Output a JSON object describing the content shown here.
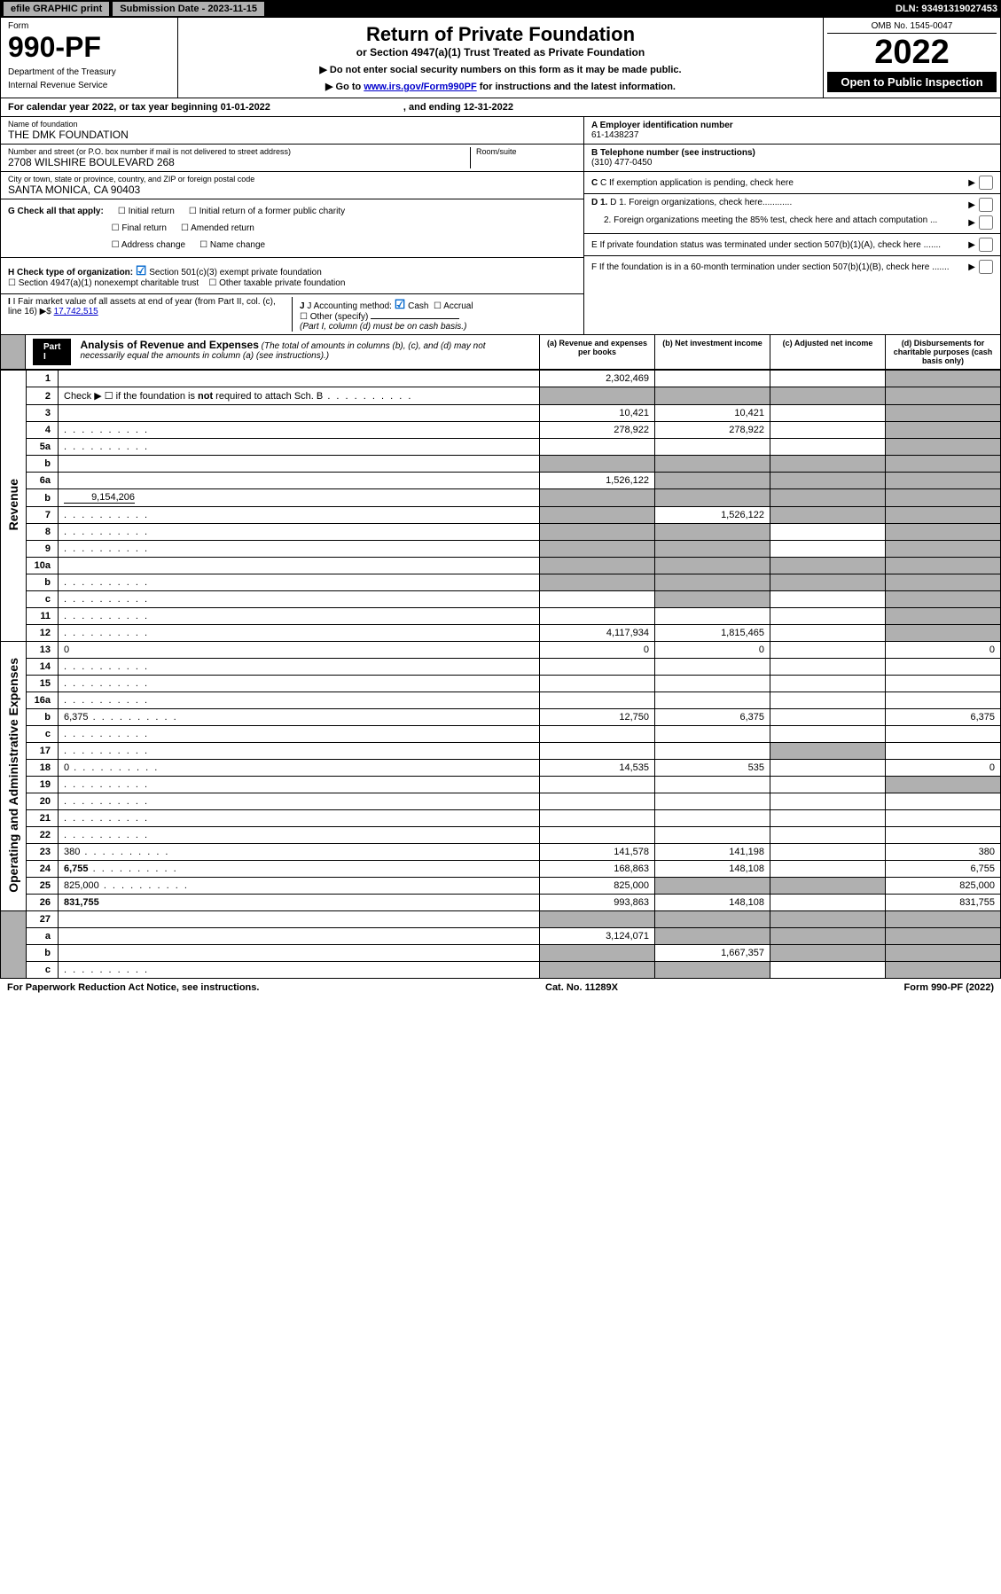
{
  "topbar": {
    "efile": "efile GRAPHIC print",
    "subdate": "Submission Date - 2023-11-15",
    "dln": "DLN: 93491319027453"
  },
  "header": {
    "form_label": "Form",
    "form_number": "990-PF",
    "dept": "Department of the Treasury",
    "irs": "Internal Revenue Service",
    "title": "Return of Private Foundation",
    "subtitle": "or Section 4947(a)(1) Trust Treated as Private Foundation",
    "note1": "▶ Do not enter social security numbers on this form as it may be made public.",
    "note2_pre": "▶ Go to ",
    "note2_link": "www.irs.gov/Form990PF",
    "note2_post": " for instructions and the latest information.",
    "omb": "OMB No. 1545-0047",
    "year": "2022",
    "open": "Open to Public Inspection"
  },
  "cal": {
    "text_a": "For calendar year 2022, or tax year beginning 01-01-2022",
    "text_b": ", and ending 12-31-2022"
  },
  "entity": {
    "name_lbl": "Name of foundation",
    "name": "THE DMK FOUNDATION",
    "addr_lbl": "Number and street (or P.O. box number if mail is not delivered to street address)",
    "addr": "2708 WILSHIRE BOULEVARD 268",
    "room_lbl": "Room/suite",
    "city_lbl": "City or town, state or province, country, and ZIP or foreign postal code",
    "city": "SANTA MONICA, CA  90403",
    "ein_lbl": "A Employer identification number",
    "ein": "61-1438237",
    "tel_lbl": "B Telephone number (see instructions)",
    "tel": "(310) 477-0450",
    "c": "C If exemption application is pending, check here",
    "d1": "D 1. Foreign organizations, check here............",
    "d2": "2. Foreign organizations meeting the 85% test, check here and attach computation ...",
    "e": "E  If private foundation status was terminated under section 507(b)(1)(A), check here .......",
    "f": "F  If the foundation is in a 60-month termination under section 507(b)(1)(B), check here .......",
    "g_lbl": "G Check all that apply:",
    "g_opts": [
      "Initial return",
      "Final return",
      "Address change",
      "Initial return of a former public charity",
      "Amended return",
      "Name change"
    ],
    "h_lbl": "H Check type of organization:",
    "h1": "Section 501(c)(3) exempt private foundation",
    "h2": "Section 4947(a)(1) nonexempt charitable trust",
    "h3": "Other taxable private foundation",
    "i_lbl": "I Fair market value of all assets at end of year (from Part II, col. (c), line 16)",
    "i_val": "17,742,515",
    "j_lbl": "J Accounting method:",
    "j_cash": "Cash",
    "j_accrual": "Accrual",
    "j_other": "Other (specify)",
    "j_note": "(Part I, column (d) must be on cash basis.)"
  },
  "part1": {
    "label": "Part I",
    "title": "Analysis of Revenue and Expenses",
    "note": "(The total of amounts in columns (b), (c), and (d) may not necessarily equal the amounts in column (a) (see instructions).)",
    "cols": {
      "a": "(a)   Revenue and expenses per books",
      "b": "(b)   Net investment income",
      "c": "(c)   Adjusted net income",
      "d": "(d)   Disbursements for charitable purposes (cash basis only)"
    }
  },
  "sections": {
    "revenue": "Revenue",
    "expenses": "Operating and Administrative Expenses"
  },
  "rows": [
    {
      "n": "1",
      "d": "",
      "a": "2,302,469",
      "b": "",
      "c": "",
      "shade_d": true
    },
    {
      "n": "2",
      "d": "",
      "a": "",
      "b": "",
      "c": "",
      "shade_a": true,
      "shade_b": true,
      "shade_c": true,
      "shade_d": true,
      "dotted": true,
      "html": true
    },
    {
      "n": "3",
      "d": "",
      "a": "10,421",
      "b": "10,421",
      "c": "",
      "shade_d": true
    },
    {
      "n": "4",
      "d": "",
      "a": "278,922",
      "b": "278,922",
      "c": "",
      "shade_d": true,
      "dotted": true
    },
    {
      "n": "5a",
      "d": "",
      "a": "",
      "b": "",
      "c": "",
      "shade_d": true,
      "dotted": true
    },
    {
      "n": "b",
      "d": "",
      "a": "",
      "b": "",
      "c": "",
      "shade_a": true,
      "shade_b": true,
      "shade_c": true,
      "shade_d": true
    },
    {
      "n": "6a",
      "d": "",
      "a": "1,526,122",
      "b": "",
      "c": "",
      "shade_b": true,
      "shade_c": true,
      "shade_d": true
    },
    {
      "n": "b",
      "d": "",
      "a": "",
      "b": "",
      "c": "",
      "shade_a": true,
      "shade_b": true,
      "shade_c": true,
      "shade_d": true,
      "inline_val": "9,154,206"
    },
    {
      "n": "7",
      "d": "",
      "a": "",
      "b": "1,526,122",
      "c": "",
      "shade_a": true,
      "shade_c": true,
      "shade_d": true,
      "dotted": true
    },
    {
      "n": "8",
      "d": "",
      "a": "",
      "b": "",
      "c": "",
      "shade_a": true,
      "shade_b": true,
      "shade_d": true,
      "dotted": true
    },
    {
      "n": "9",
      "d": "",
      "a": "",
      "b": "",
      "c": "",
      "shade_a": true,
      "shade_b": true,
      "shade_d": true,
      "dotted": true
    },
    {
      "n": "10a",
      "d": "",
      "a": "",
      "b": "",
      "c": "",
      "shade_a": true,
      "shade_b": true,
      "shade_c": true,
      "shade_d": true
    },
    {
      "n": "b",
      "d": "",
      "a": "",
      "b": "",
      "c": "",
      "shade_a": true,
      "shade_b": true,
      "shade_c": true,
      "shade_d": true,
      "dotted": true
    },
    {
      "n": "c",
      "d": "",
      "a": "",
      "b": "",
      "c": "",
      "shade_b": true,
      "shade_d": true,
      "dotted": true
    },
    {
      "n": "11",
      "d": "",
      "a": "",
      "b": "",
      "c": "",
      "shade_d": true,
      "dotted": true
    },
    {
      "n": "12",
      "d": "",
      "a": "4,117,934",
      "b": "1,815,465",
      "c": "",
      "shade_d": true,
      "bold": true,
      "dotted": true
    },
    {
      "n": "13",
      "d": "0",
      "a": "0",
      "b": "0",
      "c": "",
      "sec": "exp"
    },
    {
      "n": "14",
      "d": "",
      "a": "",
      "b": "",
      "c": "",
      "dotted": true
    },
    {
      "n": "15",
      "d": "",
      "a": "",
      "b": "",
      "c": "",
      "dotted": true
    },
    {
      "n": "16a",
      "d": "",
      "a": "",
      "b": "",
      "c": "",
      "dotted": true
    },
    {
      "n": "b",
      "d": "6,375",
      "a": "12,750",
      "b": "6,375",
      "c": "",
      "dotted": true
    },
    {
      "n": "c",
      "d": "",
      "a": "",
      "b": "",
      "c": "",
      "dotted": true
    },
    {
      "n": "17",
      "d": "",
      "a": "",
      "b": "",
      "c": "",
      "shade_c": true,
      "dotted": true
    },
    {
      "n": "18",
      "d": "0",
      "a": "14,535",
      "b": "535",
      "c": "",
      "dotted": true
    },
    {
      "n": "19",
      "d": "",
      "a": "",
      "b": "",
      "c": "",
      "shade_d": true,
      "dotted": true
    },
    {
      "n": "20",
      "d": "",
      "a": "",
      "b": "",
      "c": "",
      "dotted": true
    },
    {
      "n": "21",
      "d": "",
      "a": "",
      "b": "",
      "c": "",
      "dotted": true
    },
    {
      "n": "22",
      "d": "",
      "a": "",
      "b": "",
      "c": "",
      "dotted": true
    },
    {
      "n": "23",
      "d": "380",
      "a": "141,578",
      "b": "141,198",
      "c": "",
      "dotted": true
    },
    {
      "n": "24",
      "d": "6,755",
      "a": "168,863",
      "b": "148,108",
      "c": "",
      "bold": true,
      "dotted": true
    },
    {
      "n": "25",
      "d": "825,000",
      "a": "825,000",
      "b": "",
      "c": "",
      "shade_b": true,
      "shade_c": true,
      "dotted": true
    },
    {
      "n": "26",
      "d": "831,755",
      "a": "993,863",
      "b": "148,108",
      "c": "",
      "bold": true
    },
    {
      "n": "27",
      "d": "",
      "a": "",
      "b": "",
      "c": "",
      "shade_a": true,
      "shade_b": true,
      "shade_c": true,
      "shade_d": true,
      "sec": "none"
    },
    {
      "n": "a",
      "d": "",
      "a": "3,124,071",
      "b": "",
      "c": "",
      "shade_b": true,
      "shade_c": true,
      "shade_d": true,
      "bold": true
    },
    {
      "n": "b",
      "d": "",
      "a": "",
      "b": "1,667,357",
      "c": "",
      "shade_a": true,
      "shade_c": true,
      "shade_d": true,
      "bold": true
    },
    {
      "n": "c",
      "d": "",
      "a": "",
      "b": "",
      "c": "",
      "shade_a": true,
      "shade_b": true,
      "shade_d": true,
      "bold": true,
      "dotted": true
    }
  ],
  "footer": {
    "left": "For Paperwork Reduction Act Notice, see instructions.",
    "center": "Cat. No. 11289X",
    "right": "Form 990-PF (2022)"
  },
  "colors": {
    "black": "#000000",
    "gray": "#b0b0b0",
    "blue": "#0066cc",
    "link": "#0000cc"
  }
}
